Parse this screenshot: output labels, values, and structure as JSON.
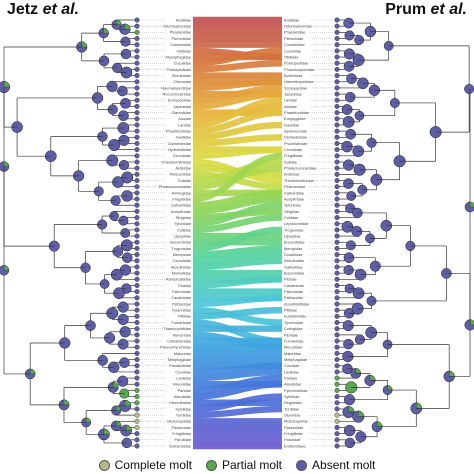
{
  "titles": {
    "left": {
      "main": "Jetz ",
      "italic": "et al."
    },
    "right": {
      "main": "Prum ",
      "italic": "et al."
    }
  },
  "legend": [
    {
      "label": "Complete molt",
      "color": "#b7b98a",
      "icon": "circle"
    },
    {
      "label": "Partial molt",
      "color": "#58a84f",
      "icon": "circle"
    },
    {
      "label": "Absent molt",
      "color": "#5d5ea5",
      "icon": "circle"
    }
  ],
  "colors": {
    "complete": "#b7b98a",
    "partial": "#58a84f",
    "absent": "#5d5ea5",
    "tree": "#333333",
    "gradient": [
      "#c05050",
      "#d87a3c",
      "#e8b43c",
      "#d9dc44",
      "#8fd455",
      "#55d39a",
      "#4cc7d6",
      "#3d9fe0",
      "#4772da",
      "#6b5ad0"
    ]
  },
  "taxa_left": [
    "Anatidae",
    "Odontophoridae",
    "Phasianidae",
    "Pteroclidae",
    "Columbidae",
    "Otididae",
    "Musophagidae",
    "Cuculidae",
    "Podicipedidae",
    "Burhinidae",
    "Chionidae",
    "Haematopodidae",
    "Recurvirostridae",
    "Scolopacidae",
    "Jacanidae",
    "Glareolidae",
    "Alcidae",
    "Laridae",
    "Phaethontidae",
    "Gaviidae",
    "Diomedeidae",
    "Hydrobatidae",
    "Ciconiidae",
    "Threskiornithidae",
    "Ardeidae",
    "Pelecanidae",
    "Sulidae",
    "Phalacrocoracidae",
    "Anhingidae",
    "Fregatidae",
    "Cathartidae",
    "Accipitridae",
    "Strigidae",
    "Tytonidae",
    "Coliidae",
    "Upupidae",
    "Bucerotidae",
    "Trogonidae",
    "Meropidae",
    "Coraciidae",
    "Alcedinidae",
    "Momotidae",
    "Ramphastidae",
    "Picidae",
    "Falconidae",
    "Cacatuidae",
    "Psittacidae",
    "Tyrannidae",
    "Pittidae",
    "Furnariidae",
    "Thamnophilidae",
    "Menuridae",
    "Climacteridae",
    "Ptilonorhynchidae",
    "Maluridae",
    "Meliphagidae",
    "Pardalotidae",
    "Corvidae",
    "Laniidae",
    "Vireonidae",
    "Paridae",
    "Alaudidae",
    "Hirundinidae",
    "Sylviidae",
    "Turdidae",
    "Muscicapidae",
    "Passeridae",
    "Fringillidae",
    "Parulidae",
    "Emberizidae"
  ],
  "taxa_right": [
    "Anatidae",
    "Odontophoridae",
    "Phasianidae",
    "Pteroclidae",
    "Columbidae",
    "Cuculidae",
    "Otididae",
    "Podicipedidae",
    "Phoenicopteridae",
    "Burhinidae",
    "Haematopodidae",
    "Scolopacidae",
    "Jacanidae",
    "Laridae",
    "Alcidae",
    "Phaethontidae",
    "Eurypygidae",
    "Gaviidae",
    "Spheniscidae",
    "Diomedeidae",
    "Procellariidae",
    "Ciconiidae",
    "Fregatidae",
    "Sulidae",
    "Phalacrocoracidae",
    "Ardeidae",
    "Threskiornithidae",
    "Pelecanidae",
    "Cathartidae",
    "Accipitridae",
    "Tytonidae",
    "Strigidae",
    "Coliidae",
    "Leptosomidae",
    "Trogonidae",
    "Upupidae",
    "Bucerotidae",
    "Meropidae",
    "Coraciidae",
    "Alcedinidae",
    "Galbulidae",
    "Bucconidae",
    "Picidae",
    "Cariamidae",
    "Falconidae",
    "Psittacidae",
    "Acanthisittidae",
    "Pittidae",
    "Eurylaimidae",
    "Tyrannidae",
    "Cotingidae",
    "Pipridae",
    "Furnariidae",
    "Menuridae",
    "Maluridae",
    "Meliphagidae",
    "Corvidae",
    "Laniidae",
    "Paridae",
    "Alaudidae",
    "Pycnonotidae",
    "Sylviidae",
    "Regulidae",
    "Turdidae",
    "Sturnidae",
    "Muscicapidae",
    "Passeridae",
    "Fringillidae",
    "Parulidae",
    "Emberizidae"
  ],
  "molt_left": [
    "A",
    "A",
    "P",
    "A",
    "A",
    "A",
    "A",
    "A",
    "A",
    "A",
    "A",
    "A",
    "A",
    "A",
    "A",
    "A",
    "A",
    "A",
    "A",
    "A",
    "A",
    "A",
    "A",
    "A",
    "A",
    "A",
    "A",
    "A",
    "A",
    "A",
    "A",
    "A",
    "A",
    "A",
    "A",
    "A",
    "A",
    "A",
    "A",
    "A",
    "A",
    "A",
    "A",
    "A",
    "A",
    "A",
    "A",
    "A",
    "A",
    "A",
    "A",
    "A",
    "A",
    "A",
    "A",
    "A",
    "A",
    "A",
    "A",
    "A",
    "P",
    "P",
    "P",
    "A",
    "C",
    "C",
    "C",
    "A",
    "A",
    "A"
  ],
  "molt_right": [
    "A",
    "A",
    "A",
    "A",
    "A",
    "A",
    "A",
    "A",
    "A",
    "A",
    "A",
    "A",
    "A",
    "A",
    "A",
    "A",
    "A",
    "A",
    "A",
    "A",
    "A",
    "A",
    "A",
    "A",
    "A",
    "A",
    "A",
    "A",
    "A",
    "A",
    "A",
    "A",
    "A",
    "A",
    "A",
    "A",
    "A",
    "A",
    "A",
    "A",
    "A",
    "A",
    "A",
    "A",
    "A",
    "A",
    "A",
    "A",
    "A",
    "A",
    "A",
    "A",
    "A",
    "A",
    "A",
    "A",
    "A",
    "A",
    "P",
    "P",
    "P",
    "A",
    "A",
    "A",
    "C",
    "C",
    "A",
    "A",
    "A",
    "A"
  ]
}
